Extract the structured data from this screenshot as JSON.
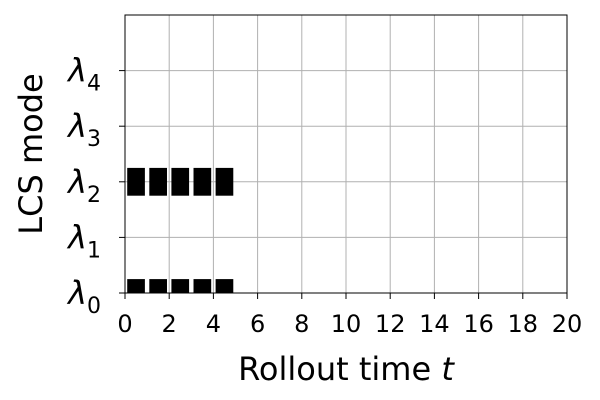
{
  "chart_data": {
    "type": "bar",
    "xlabel": "Rollout time",
    "xlabel_var": "t",
    "ylabel": "LCS mode",
    "xlim": [
      0,
      20
    ],
    "x_ticks": [
      0,
      2,
      4,
      6,
      8,
      10,
      12,
      14,
      16,
      18,
      20
    ],
    "x_tick_labels": [
      "0",
      "2",
      "4",
      "6",
      "8",
      "10",
      "12",
      "14",
      "16",
      "18",
      "20"
    ],
    "ylim": [
      0,
      5
    ],
    "y_ticks": [
      0,
      1,
      2,
      3,
      4
    ],
    "y_tick_labels": [
      {
        "symbol": "λ",
        "sub": "0"
      },
      {
        "symbol": "λ",
        "sub": "1"
      },
      {
        "symbol": "λ",
        "sub": "2"
      },
      {
        "symbol": "λ",
        "sub": "3"
      },
      {
        "symbol": "λ",
        "sub": "4"
      }
    ],
    "grid": true,
    "bar_color": "#000000",
    "grid_color": "#b0b0b0",
    "segments": [
      {
        "mode": 0,
        "x_start": 0.1,
        "x_end": 0.9
      },
      {
        "mode": 0,
        "x_start": 1.1,
        "x_end": 1.9
      },
      {
        "mode": 0,
        "x_start": 2.1,
        "x_end": 2.9
      },
      {
        "mode": 0,
        "x_start": 3.1,
        "x_end": 3.9
      },
      {
        "mode": 0,
        "x_start": 4.1,
        "x_end": 4.9
      },
      {
        "mode": 2,
        "x_start": 0.1,
        "x_end": 0.9
      },
      {
        "mode": 2,
        "x_start": 1.1,
        "x_end": 1.9
      },
      {
        "mode": 2,
        "x_start": 2.1,
        "x_end": 2.9
      },
      {
        "mode": 2,
        "x_start": 3.1,
        "x_end": 3.9
      },
      {
        "mode": 2,
        "x_start": 4.1,
        "x_end": 4.9
      }
    ]
  }
}
